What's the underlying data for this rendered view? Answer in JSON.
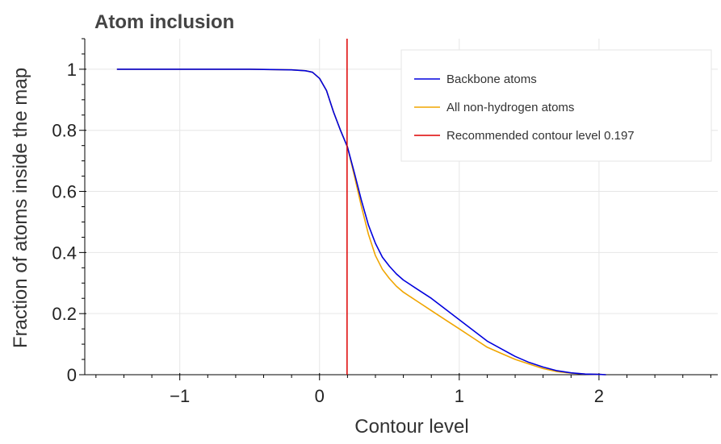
{
  "chart_data": {
    "type": "line",
    "title": "Atom inclusion",
    "xlabel": "Contour level",
    "ylabel": "Fraction of atoms inside the map",
    "xlim": [
      -1.68,
      2.85
    ],
    "ylim": [
      0,
      1.1
    ],
    "xticks": [
      -1,
      0,
      1,
      2
    ],
    "xtick_labels": [
      "−1",
      "0",
      "1",
      "2"
    ],
    "yticks": [
      0,
      0.2,
      0.4,
      0.6,
      0.8,
      1
    ],
    "ytick_labels": [
      "0",
      "0.2",
      "0.4",
      "0.6",
      "0.8",
      "1"
    ],
    "grid": true,
    "legend_position": "top-right",
    "series": [
      {
        "name": "Backbone atoms",
        "color": "#0000dd",
        "x": [
          -1.45,
          -1.0,
          -0.5,
          -0.2,
          -0.1,
          -0.05,
          0.0,
          0.05,
          0.1,
          0.15,
          0.2,
          0.25,
          0.3,
          0.35,
          0.4,
          0.45,
          0.5,
          0.55,
          0.6,
          0.7,
          0.8,
          0.9,
          1.0,
          1.1,
          1.2,
          1.3,
          1.4,
          1.5,
          1.6,
          1.7,
          1.8,
          1.9,
          2.0,
          2.05
        ],
        "values": [
          1.0,
          1.0,
          1.0,
          0.998,
          0.995,
          0.99,
          0.97,
          0.93,
          0.86,
          0.8,
          0.745,
          0.66,
          0.57,
          0.49,
          0.43,
          0.385,
          0.355,
          0.33,
          0.31,
          0.28,
          0.25,
          0.215,
          0.18,
          0.145,
          0.11,
          0.085,
          0.06,
          0.04,
          0.025,
          0.013,
          0.006,
          0.002,
          0.001,
          0.0
        ]
      },
      {
        "name": "All non-hydrogen atoms",
        "color": "#f0a500",
        "x": [
          -1.45,
          -1.0,
          -0.5,
          -0.2,
          -0.1,
          -0.05,
          0.0,
          0.05,
          0.1,
          0.15,
          0.2,
          0.25,
          0.3,
          0.35,
          0.4,
          0.45,
          0.5,
          0.55,
          0.6,
          0.7,
          0.8,
          0.9,
          1.0,
          1.1,
          1.2,
          1.3,
          1.4,
          1.5,
          1.6,
          1.7,
          1.8,
          1.9,
          2.0,
          2.05
        ],
        "values": [
          1.0,
          1.0,
          1.0,
          0.998,
          0.995,
          0.99,
          0.97,
          0.93,
          0.86,
          0.8,
          0.745,
          0.65,
          0.55,
          0.46,
          0.39,
          0.345,
          0.315,
          0.29,
          0.27,
          0.24,
          0.21,
          0.18,
          0.15,
          0.12,
          0.09,
          0.07,
          0.05,
          0.035,
          0.02,
          0.01,
          0.005,
          0.002,
          0.001,
          0.0
        ]
      }
    ],
    "vline": {
      "name": "Recommended contour level 0.197",
      "x": 0.197,
      "color": "#dd0000"
    }
  }
}
